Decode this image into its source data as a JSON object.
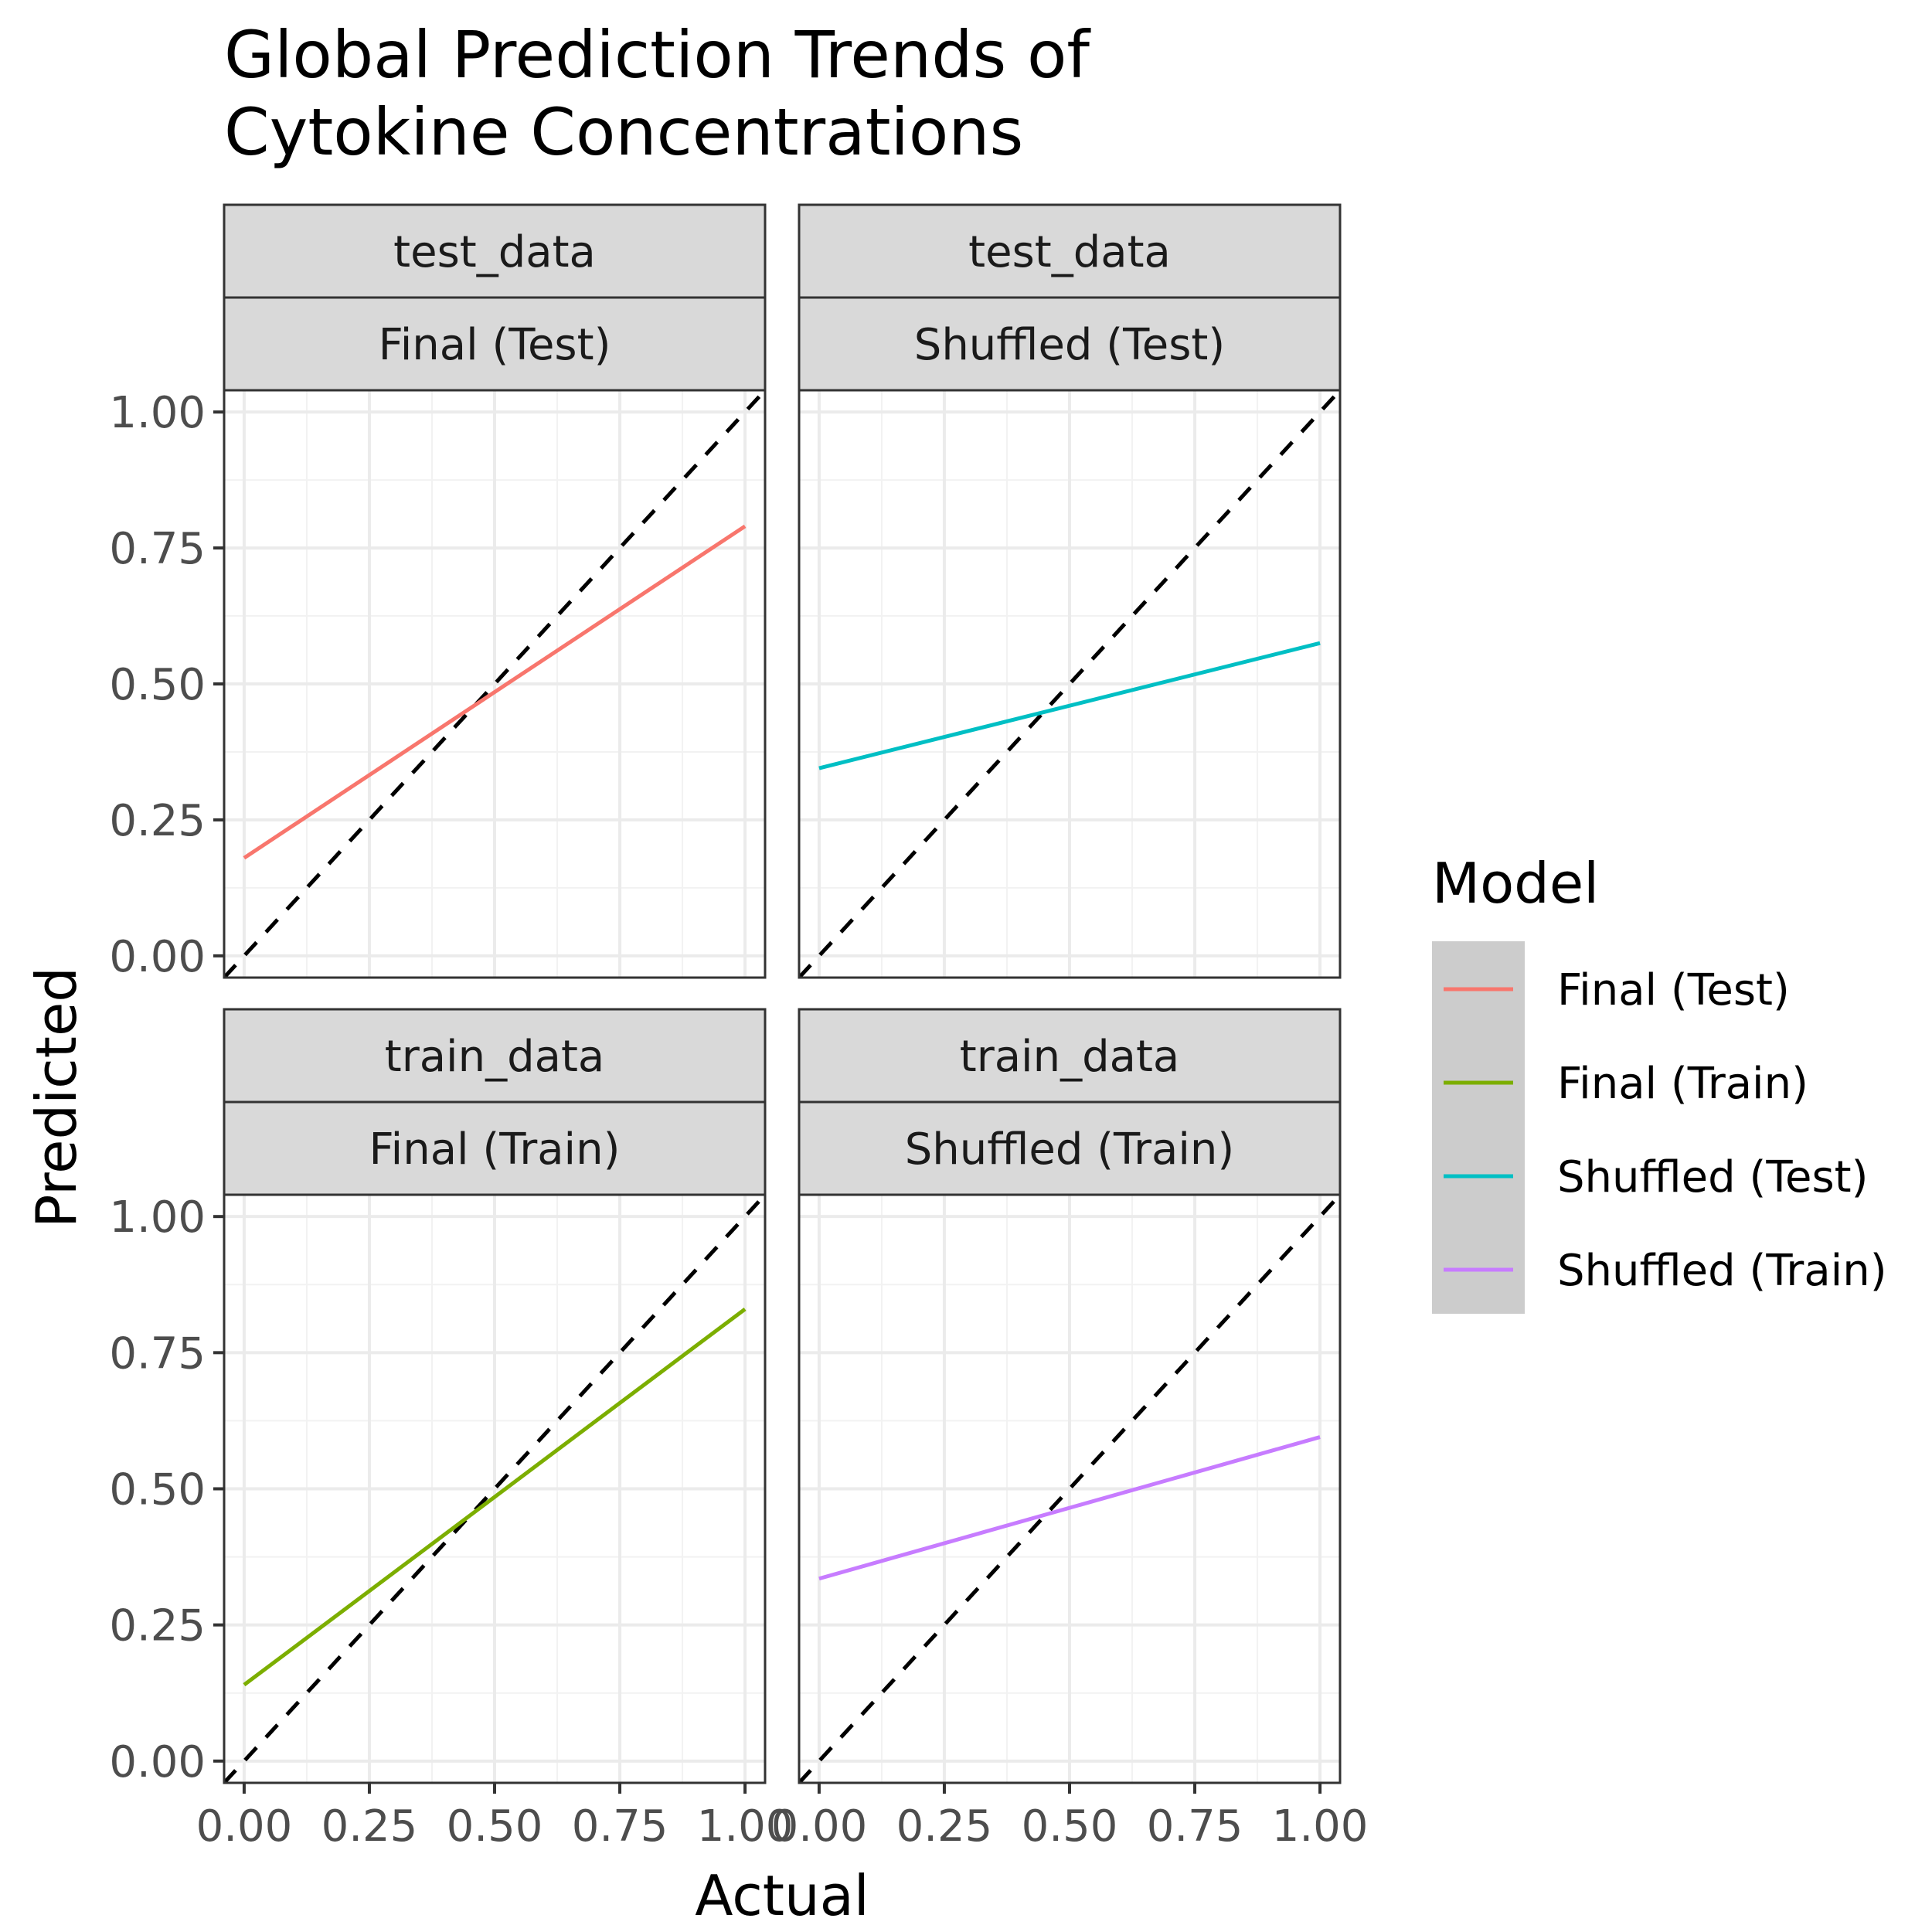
{
  "chart_data": {
    "type": "line",
    "title": "Global Prediction Trends of\nCytokine Concentrations",
    "xlabel": "Actual",
    "ylabel": "Predicted",
    "xlim": [
      -0.04,
      1.04
    ],
    "ylim": [
      -0.04,
      1.04
    ],
    "x_ticks": [
      "0.00",
      "0.25",
      "0.50",
      "0.75",
      "1.00"
    ],
    "y_ticks": [
      "0.00",
      "0.25",
      "0.50",
      "0.75",
      "1.00"
    ],
    "grid": true,
    "reference_line": {
      "slope": 1,
      "intercept": 0,
      "style": "dashed",
      "color": "#000000"
    },
    "legend": {
      "title": "Model",
      "position": "right",
      "entries": [
        {
          "label": "Final (Test)",
          "color": "#F8766D"
        },
        {
          "label": "Final (Train)",
          "color": "#7CAE00"
        },
        {
          "label": "Shuffled (Test)",
          "color": "#00BFC4"
        },
        {
          "label": "Shuffled (Train)",
          "color": "#C77CFF"
        }
      ]
    },
    "panels": [
      {
        "strip_top": "test_data",
        "strip_bottom": "Final (Test)",
        "series": {
          "name": "Final (Test)",
          "color": "#F8766D",
          "x": [
            0.0,
            1.0
          ],
          "y": [
            0.18,
            0.79
          ]
        }
      },
      {
        "strip_top": "test_data",
        "strip_bottom": "Shuffled (Test)",
        "series": {
          "name": "Shuffled (Test)",
          "color": "#00BFC4",
          "x": [
            0.0,
            1.0
          ],
          "y": [
            0.345,
            0.575
          ]
        }
      },
      {
        "strip_top": "train_data",
        "strip_bottom": "Final (Train)",
        "series": {
          "name": "Final (Train)",
          "color": "#7CAE00",
          "x": [
            0.0,
            1.0
          ],
          "y": [
            0.14,
            0.83
          ]
        }
      },
      {
        "strip_top": "train_data",
        "strip_bottom": "Shuffled (Train)",
        "series": {
          "name": "Shuffled (Train)",
          "color": "#C77CFF",
          "x": [
            0.0,
            1.0
          ],
          "y": [
            0.335,
            0.595
          ]
        }
      }
    ]
  }
}
